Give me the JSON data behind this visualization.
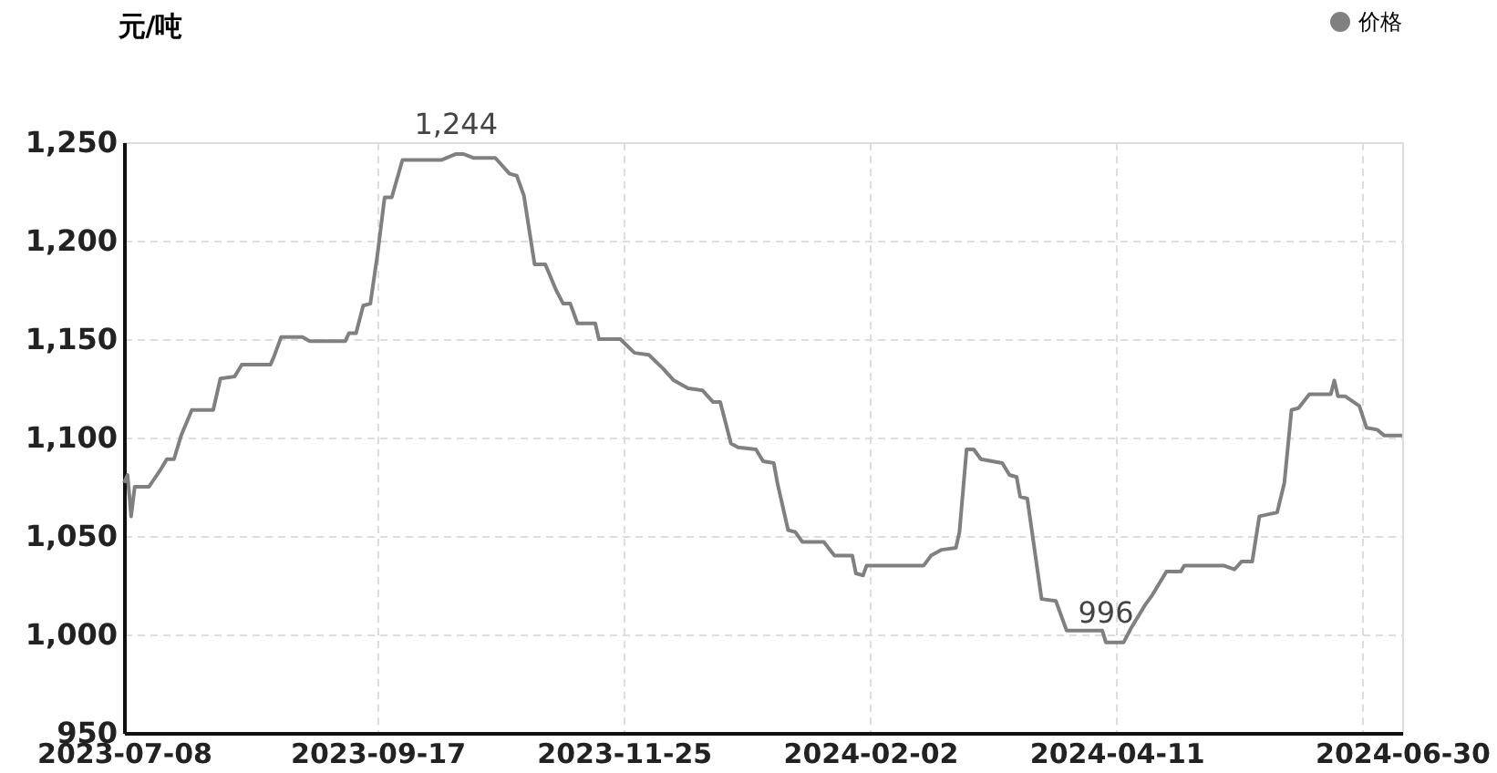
{
  "chart_data": {
    "type": "line",
    "ylabel": "元/吨",
    "legend": "top right",
    "grid": true,
    "line_style": "solid",
    "marker": "none",
    "xlim": [
      "2023-07-08",
      "2024-06-30"
    ],
    "xticks": [
      {
        "value": "2023-07-08",
        "label": "2023-07-08"
      },
      {
        "value": "2023-09-17",
        "label": "2023-09-17"
      },
      {
        "value": "2023-11-25",
        "label": "2023-11-25"
      },
      {
        "value": "2024-02-02",
        "label": "2024-02-02"
      },
      {
        "value": "2024-04-11",
        "label": "2024-04-11"
      },
      {
        "value": "2024-06-19",
        "label": null
      },
      {
        "value": "2024-06-30",
        "label": "2024-06-30"
      }
    ],
    "ylim": [
      950,
      1250
    ],
    "yticks": [
      {
        "value": 950,
        "label": "950"
      },
      {
        "value": 1000,
        "label": "1,000"
      },
      {
        "value": 1050,
        "label": "1,050"
      },
      {
        "value": 1100,
        "label": "1,100"
      },
      {
        "value": 1150,
        "label": "1,150"
      },
      {
        "value": 1200,
        "label": "1,200"
      },
      {
        "value": 1250,
        "label": "1,250"
      }
    ],
    "annotations": [
      {
        "text": "1,244",
        "x": "2023-10-09",
        "y": 1244
      },
      {
        "text": "996",
        "x": "2024-04-08",
        "y": 996
      }
    ],
    "series": [
      {
        "name": "价格",
        "color": "#808080",
        "x": [
          "2023-07-08",
          "2023-07-09",
          "2023-07-10",
          "2023-07-11",
          "2023-07-15",
          "2023-07-18",
          "2023-07-20",
          "2023-07-22",
          "2023-07-24",
          "2023-07-27",
          "2023-08-02",
          "2023-08-04",
          "2023-08-08",
          "2023-08-10",
          "2023-08-18",
          "2023-08-19",
          "2023-08-21",
          "2023-08-27",
          "2023-08-29",
          "2023-09-08",
          "2023-09-09",
          "2023-09-11",
          "2023-09-13",
          "2023-09-15",
          "2023-09-17",
          "2023-09-19",
          "2023-09-21",
          "2023-09-24",
          "2023-10-05",
          "2023-10-09",
          "2023-10-11",
          "2023-10-14",
          "2023-10-20",
          "2023-10-24",
          "2023-10-26",
          "2023-10-28",
          "2023-10-31",
          "2023-11-03",
          "2023-11-06",
          "2023-11-08",
          "2023-11-10",
          "2023-11-12",
          "2023-11-17",
          "2023-11-18",
          "2023-11-24",
          "2023-11-28",
          "2023-12-02",
          "2023-12-06",
          "2023-12-09",
          "2023-12-13",
          "2023-12-17",
          "2023-12-20",
          "2023-12-22",
          "2023-12-25",
          "2023-12-27",
          "2024-01-01",
          "2024-01-03",
          "2024-01-06",
          "2024-01-07",
          "2024-01-10",
          "2024-01-12",
          "2024-01-14",
          "2024-01-20",
          "2024-01-23",
          "2024-01-28",
          "2024-01-29",
          "2024-01-31",
          "2024-02-01",
          "2024-02-17",
          "2024-02-19",
          "2024-02-22",
          "2024-02-26",
          "2024-02-27",
          "2024-02-29",
          "2024-03-02",
          "2024-03-04",
          "2024-03-10",
          "2024-03-12",
          "2024-03-14",
          "2024-03-15",
          "2024-03-17",
          "2024-03-21",
          "2024-03-25",
          "2024-03-28",
          "2024-04-07",
          "2024-04-08",
          "2024-04-13",
          "2024-04-15",
          "2024-04-19",
          "2024-04-21",
          "2024-04-25",
          "2024-04-29",
          "2024-04-30",
          "2024-05-11",
          "2024-05-14",
          "2024-05-16",
          "2024-05-19",
          "2024-05-21",
          "2024-05-26",
          "2024-05-28",
          "2024-05-30",
          "2024-06-01",
          "2024-06-04",
          "2024-06-10",
          "2024-06-11",
          "2024-06-12",
          "2024-06-14",
          "2024-06-18",
          "2024-06-20",
          "2024-06-23",
          "2024-06-25",
          "2024-06-30"
        ],
        "values": [
          1077,
          1081,
          1060,
          1075,
          1075,
          1083,
          1089,
          1089,
          1101,
          1114,
          1114,
          1130,
          1131,
          1137,
          1137,
          1141,
          1151,
          1151,
          1149,
          1149,
          1153,
          1153,
          1167,
          1168,
          1193,
          1222,
          1222,
          1241,
          1241,
          1244,
          1244,
          1242,
          1242,
          1234,
          1233,
          1223,
          1188,
          1188,
          1175,
          1168,
          1168,
          1158,
          1158,
          1150,
          1150,
          1143,
          1142,
          1135,
          1129,
          1125,
          1124,
          1118,
          1118,
          1097,
          1095,
          1094,
          1088,
          1087,
          1077,
          1053,
          1052,
          1047,
          1047,
          1040,
          1040,
          1031,
          1030,
          1035,
          1035,
          1040,
          1043,
          1044,
          1052,
          1094,
          1094,
          1089,
          1087,
          1081,
          1080,
          1070,
          1069,
          1018,
          1017,
          1002,
          1002,
          996,
          996,
          1003,
          1015,
          1020,
          1032,
          1032,
          1035,
          1035,
          1033,
          1037,
          1037,
          1060,
          1062,
          1077,
          1114,
          1115,
          1122,
          1122,
          1129,
          1121,
          1121,
          1116,
          1105,
          1104,
          1101,
          1101
        ]
      }
    ]
  }
}
